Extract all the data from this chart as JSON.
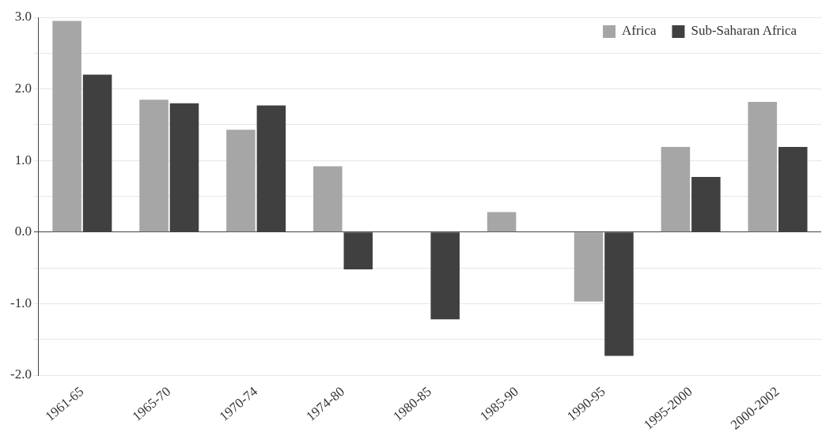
{
  "chart_data": {
    "type": "bar",
    "categories": [
      "1961-65",
      "1965-70",
      "1970-74",
      "1974-80",
      "1980-85",
      "1985-90",
      "1990-95",
      "1995-2000",
      "2000-2002"
    ],
    "series": [
      {
        "name": "Africa",
        "color": "#a6a6a6",
        "values": [
          2.95,
          1.85,
          1.43,
          0.92,
          null,
          0.28,
          -0.97,
          1.19,
          1.82
        ]
      },
      {
        "name": "Sub-Saharan Africa",
        "color": "#404040",
        "values": [
          2.2,
          1.8,
          1.77,
          -0.52,
          -1.22,
          null,
          -1.73,
          0.77,
          1.19
        ]
      }
    ],
    "ylim": [
      -2,
      3
    ],
    "yticks": [
      {
        "value": -2,
        "label": "-2.0"
      },
      {
        "value": -1.5,
        "label": null
      },
      {
        "value": -1,
        "label": "-1.0"
      },
      {
        "value": -0.5,
        "label": null
      },
      {
        "value": 0,
        "label": "0.0"
      },
      {
        "value": 0.5,
        "label": null
      },
      {
        "value": 1,
        "label": "1.0"
      },
      {
        "value": 1.5,
        "label": null
      },
      {
        "value": 2,
        "label": "2.0"
      },
      {
        "value": 2.5,
        "label": null
      },
      {
        "value": 3,
        "label": "3.0"
      }
    ],
    "grid": "y",
    "legend": "top right"
  }
}
